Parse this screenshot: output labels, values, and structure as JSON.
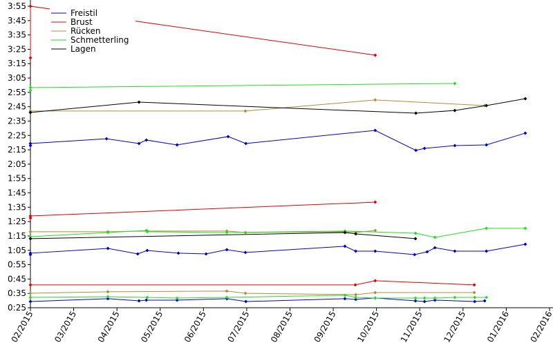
{
  "chart_data": {
    "type": "line",
    "legend": "upper left",
    "xlim": [
      0,
      12.08
    ],
    "ylim": [
      25,
      235
    ],
    "xticks": [
      {
        "value": 0,
        "label": "02/2015"
      },
      {
        "value": 1,
        "label": "03/2015"
      },
      {
        "value": 2,
        "label": "04/2015"
      },
      {
        "value": 3,
        "label": "05/2015"
      },
      {
        "value": 4,
        "label": "06/2015"
      },
      {
        "value": 5,
        "label": "07/2015"
      },
      {
        "value": 6,
        "label": "08/2015"
      },
      {
        "value": 7,
        "label": "09/2015"
      },
      {
        "value": 8,
        "label": "10/2015"
      },
      {
        "value": 9,
        "label": "11/2015"
      },
      {
        "value": 10,
        "label": "12/2015"
      },
      {
        "value": 11,
        "label": "01/2016"
      },
      {
        "value": 12,
        "label": "02/2016"
      }
    ],
    "yticks": [
      {
        "value": 25,
        "label": "0:25"
      },
      {
        "value": 35,
        "label": "0:35"
      },
      {
        "value": 45,
        "label": "0:45"
      },
      {
        "value": 55,
        "label": "0:55"
      },
      {
        "value": 65,
        "label": "1:05"
      },
      {
        "value": 75,
        "label": "1:15"
      },
      {
        "value": 85,
        "label": "1:25"
      },
      {
        "value": 95,
        "label": "1:35"
      },
      {
        "value": 105,
        "label": "1:45"
      },
      {
        "value": 115,
        "label": "1:55"
      },
      {
        "value": 125,
        "label": "2:05"
      },
      {
        "value": 135,
        "label": "2:15"
      },
      {
        "value": 145,
        "label": "2:25"
      },
      {
        "value": 155,
        "label": "2:35"
      },
      {
        "value": 165,
        "label": "2:45"
      },
      {
        "value": 175,
        "label": "2:55"
      },
      {
        "value": 185,
        "label": "3:05"
      },
      {
        "value": 195,
        "label": "3:15"
      },
      {
        "value": 205,
        "label": "3:25"
      },
      {
        "value": 215,
        "label": "3:35"
      },
      {
        "value": 225,
        "label": "3:45"
      },
      {
        "value": 235,
        "label": "3:55"
      }
    ],
    "series": [
      {
        "name": "Freistil",
        "color": "#0000cc",
        "lines": [
          {
            "x": [
              0,
              0,
              1.76,
              2.51,
              2.68,
              3.39,
              4.57,
              4.98,
              7.97,
              8.91,
              9.11,
              9.81,
              10.54,
              11.44
            ],
            "values": [
              137.9,
              139.4,
              142.7,
              139.4,
              141.8,
              138.4,
              144.2,
              139.4,
              148.5,
              134.6,
              136,
              137.9,
              138.4,
              146.6
            ]
          },
          {
            "x": [
              0,
              0,
              1.79,
              2.48,
              2.7,
              3.42,
              4.06,
              4.54,
              4.97,
              7.27,
              7.52,
              7.97,
              8.88,
              9.17,
              9.35,
              9.81,
              10.54,
              11.44
            ],
            "values": [
              62,
              63,
              66.3,
              62.5,
              64.9,
              63,
              62.5,
              65.4,
              63.5,
              67.8,
              64.4,
              64.4,
              62,
              63.9,
              66.8,
              64.4,
              64.4,
              69.2
            ]
          },
          {
            "x": [
              0,
              1.79,
              2.51,
              2.68,
              3.39,
              4.54,
              4.98,
              7.27,
              7.52,
              7.97,
              8.9,
              9.11,
              9.35,
              10.27,
              10.5
            ],
            "values": [
              29.3,
              31.3,
              29.8,
              30.3,
              30.3,
              31.3,
              29.3,
              31.3,
              30.8,
              31.8,
              29.8,
              29.3,
              30.3,
              29.3,
              29.8
            ]
          }
        ]
      },
      {
        "name": "Brust",
        "color": "#dd0000",
        "lines": [
          {
            "x": [
              0,
              0,
              7.97
            ],
            "values": [
              199,
              235,
              200.9
            ]
          },
          {
            "x": [
              0,
              0,
              7.97
            ],
            "values": [
              87.5,
              88.9,
              98.5
            ]
          },
          {
            "x": [
              0,
              7.51,
              7.97,
              10.26
            ],
            "values": [
              40.9,
              40.9,
              43.8,
              40.9
            ]
          }
        ]
      },
      {
        "name": "Rücken",
        "color": "#b08a3c",
        "lines": [
          {
            "x": [
              0,
              4.97,
              7.97,
              10.5
            ],
            "values": [
              162,
              162,
              169.7,
              165.8
            ]
          },
          {
            "x": [
              0,
              1.79,
              2.7,
              4.54,
              4.97,
              7.27,
              7.52,
              7.97
            ],
            "values": [
              77.9,
              77.9,
              78.4,
              78.4,
              77.4,
              77.9,
              77.4,
              78.8
            ]
          },
          {
            "x": [
              0,
              1.79,
              4.54,
              4.97,
              7.52,
              7.97,
              10.26
            ],
            "values": [
              35.1,
              36.1,
              36.6,
              35.1,
              34.1,
              35.6,
              35.6
            ]
          }
        ]
      },
      {
        "name": "Schmetterling",
        "color": "#22dd22",
        "lines": [
          {
            "x": [
              0,
              0,
              9.81
            ],
            "values": [
              176.4,
              178.3,
              181.2
            ]
          },
          {
            "x": [
              0,
              1.79,
              2.68,
              2.7,
              4.54,
              7.27,
              8.9,
              9.35,
              10.54,
              11.44
            ],
            "values": [
              74.5,
              77.4,
              78.8,
              77.9,
              77.4,
              78.4,
              76.9,
              74,
              80.3,
              80.3
            ]
          },
          {
            "x": [
              0,
              1.79,
              2.7,
              3.39,
              4.54,
              7.27,
              7.52,
              7.97,
              8.9,
              9.11,
              9.35,
              9.81,
              10.27,
              10.54
            ],
            "values": [
              32.2,
              32.7,
              32.2,
              31.7,
              32.2,
              33.7,
              32.2,
              31.7,
              31.7,
              31.7,
              31.7,
              32.2,
              32.2,
              32.2
            ]
          }
        ]
      },
      {
        "name": "Lagen",
        "color": "#000000",
        "lines": [
          {
            "x": [
              0,
              2.51,
              8.91,
              9.81,
              10.54,
              11.44
            ],
            "values": [
              161,
              168.2,
              160.5,
              162.4,
              165.8,
              170.6
            ]
          },
          {
            "x": [
              0,
              7.27,
              7.52,
              8.9
            ],
            "values": [
              73.1,
              77.4,
              76.4,
              73.1
            ]
          }
        ]
      }
    ]
  }
}
